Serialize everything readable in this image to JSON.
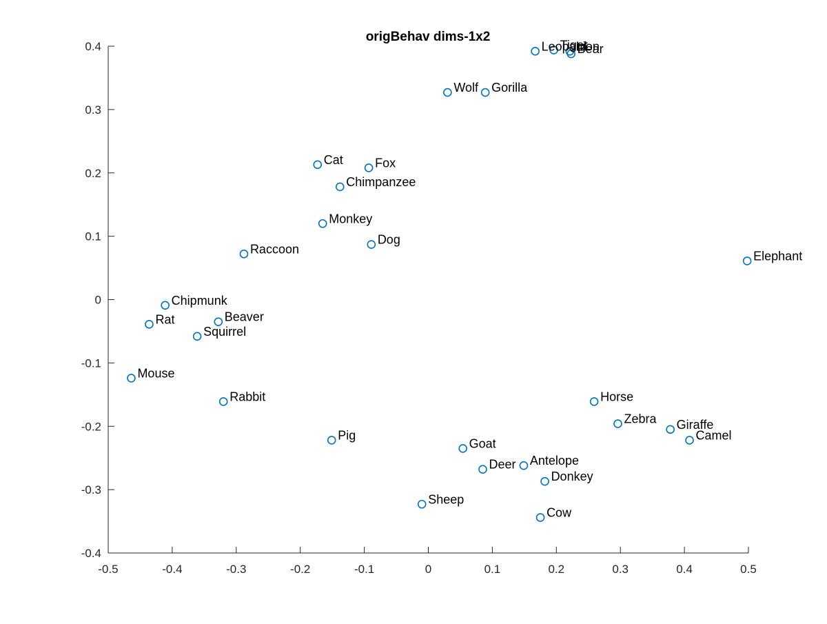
{
  "chart_data": {
    "type": "scatter",
    "title": "origBehav dims-1x2",
    "xlabel": "",
    "ylabel": "",
    "xlim": [
      -0.5,
      0.5
    ],
    "ylim": [
      -0.4,
      0.4
    ],
    "xticks": [
      -0.5,
      -0.4,
      -0.3,
      -0.2,
      -0.1,
      0,
      0.1,
      0.2,
      0.3,
      0.4,
      0.5
    ],
    "xtick_labels": [
      "-0.5",
      "-0.4",
      "-0.3",
      "-0.2",
      "-0.1",
      "0",
      "0.1",
      "0.2",
      "0.3",
      "0.4",
      "0.5"
    ],
    "yticks": [
      0.4,
      0.3,
      0.2,
      0.1,
      0,
      -0.1,
      -0.2,
      -0.3,
      -0.4
    ],
    "ytick_labels": [
      "0.4",
      "0.3",
      "0.2",
      "0.1",
      "0",
      "-0.1",
      "-0.2",
      "-0.3",
      "-0.4"
    ],
    "grid": false,
    "marker": "circle",
    "marker_color": "#0072BD",
    "points": [
      {
        "label": "Leopard",
        "x": 0.167,
        "y": 0.392
      },
      {
        "label": "Tiger",
        "x": 0.196,
        "y": 0.394
      },
      {
        "label": "Lion",
        "x": 0.221,
        "y": 0.392
      },
      {
        "label": "Bear",
        "x": 0.223,
        "y": 0.388
      },
      {
        "label": "Wolf",
        "x": 0.03,
        "y": 0.327
      },
      {
        "label": "Gorilla",
        "x": 0.089,
        "y": 0.327
      },
      {
        "label": "Cat",
        "x": -0.173,
        "y": 0.213
      },
      {
        "label": "Fox",
        "x": -0.093,
        "y": 0.208
      },
      {
        "label": "Chimpanzee",
        "x": -0.138,
        "y": 0.178
      },
      {
        "label": "Monkey",
        "x": -0.165,
        "y": 0.12
      },
      {
        "label": "Dog",
        "x": -0.089,
        "y": 0.087
      },
      {
        "label": "Raccoon",
        "x": -0.288,
        "y": 0.072
      },
      {
        "label": "Elephant",
        "x": 0.498,
        "y": 0.061
      },
      {
        "label": "Chipmunk",
        "x": -0.411,
        "y": -0.009
      },
      {
        "label": "Rat",
        "x": -0.436,
        "y": -0.039
      },
      {
        "label": "Beaver",
        "x": -0.328,
        "y": -0.035
      },
      {
        "label": "Squirrel",
        "x": -0.361,
        "y": -0.058
      },
      {
        "label": "Mouse",
        "x": -0.464,
        "y": -0.124
      },
      {
        "label": "Rabbit",
        "x": -0.32,
        "y": -0.161
      },
      {
        "label": "Horse",
        "x": 0.259,
        "y": -0.161
      },
      {
        "label": "Zebra",
        "x": 0.296,
        "y": -0.196
      },
      {
        "label": "Giraffe",
        "x": 0.378,
        "y": -0.205
      },
      {
        "label": "Camel",
        "x": 0.408,
        "y": -0.222
      },
      {
        "label": "Pig",
        "x": -0.151,
        "y": -0.222
      },
      {
        "label": "Goat",
        "x": 0.054,
        "y": -0.235
      },
      {
        "label": "Antelope",
        "x": 0.149,
        "y": -0.262
      },
      {
        "label": "Deer",
        "x": 0.085,
        "y": -0.268
      },
      {
        "label": "Donkey",
        "x": 0.182,
        "y": -0.287
      },
      {
        "label": "Sheep",
        "x": -0.01,
        "y": -0.323
      },
      {
        "label": "Cow",
        "x": 0.175,
        "y": -0.344
      }
    ]
  }
}
